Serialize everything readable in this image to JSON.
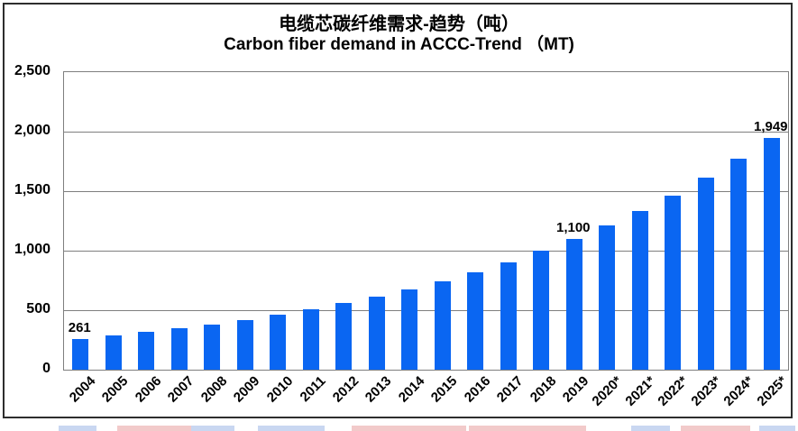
{
  "chart_data": {
    "type": "bar",
    "title_zh": "电缆芯碳纤维需求-趋势（吨）",
    "title_en": "Carbon fiber demand in ACCC-Trend （MT)",
    "categories": [
      "2004",
      "2005",
      "2006",
      "2007",
      "2008",
      "2009",
      "2010",
      "2011",
      "2012",
      "2013",
      "2014",
      "2015",
      "2016",
      "2017",
      "2018",
      "2019",
      "2020*",
      "2021*",
      "2022*",
      "2023*",
      "2024*",
      "2025*"
    ],
    "values": [
      261,
      287,
      316,
      347,
      382,
      420,
      462,
      508,
      559,
      615,
      677,
      744,
      818,
      900,
      1000,
      1100,
      1210,
      1331,
      1464,
      1610,
      1771,
      1949
    ],
    "ylim": [
      0,
      2500
    ],
    "ytick_interval": 500,
    "ytick_labels": [
      "0",
      "500",
      "1,000",
      "1,500",
      "2,000",
      "2,500"
    ],
    "data_labels": [
      {
        "index": 0,
        "text": "261"
      },
      {
        "index": 15,
        "text": "1,100"
      },
      {
        "index": 21,
        "text": "1,949"
      }
    ],
    "bar_color": "#0a66f2",
    "gridline_color": "#7f7f7f",
    "grid": true,
    "legend": "none",
    "x_label_rotation_deg": -45
  },
  "cutoff_strip": {
    "segments": [
      {
        "x": 65,
        "w": 42,
        "color": "#c9d7f1"
      },
      {
        "x": 130,
        "w": 100,
        "color": "#f2caca"
      },
      {
        "x": 212,
        "w": 48,
        "color": "#c9d7f1"
      },
      {
        "x": 286,
        "w": 74,
        "color": "#c9d7f1"
      },
      {
        "x": 390,
        "w": 127,
        "color": "#f2caca"
      },
      {
        "x": 520,
        "w": 130,
        "color": "#f2caca"
      },
      {
        "x": 700,
        "w": 43,
        "color": "#c9d7f1"
      },
      {
        "x": 755,
        "w": 77,
        "color": "#f2caca"
      },
      {
        "x": 842,
        "w": 40,
        "color": "#c9d7f1"
      }
    ]
  }
}
